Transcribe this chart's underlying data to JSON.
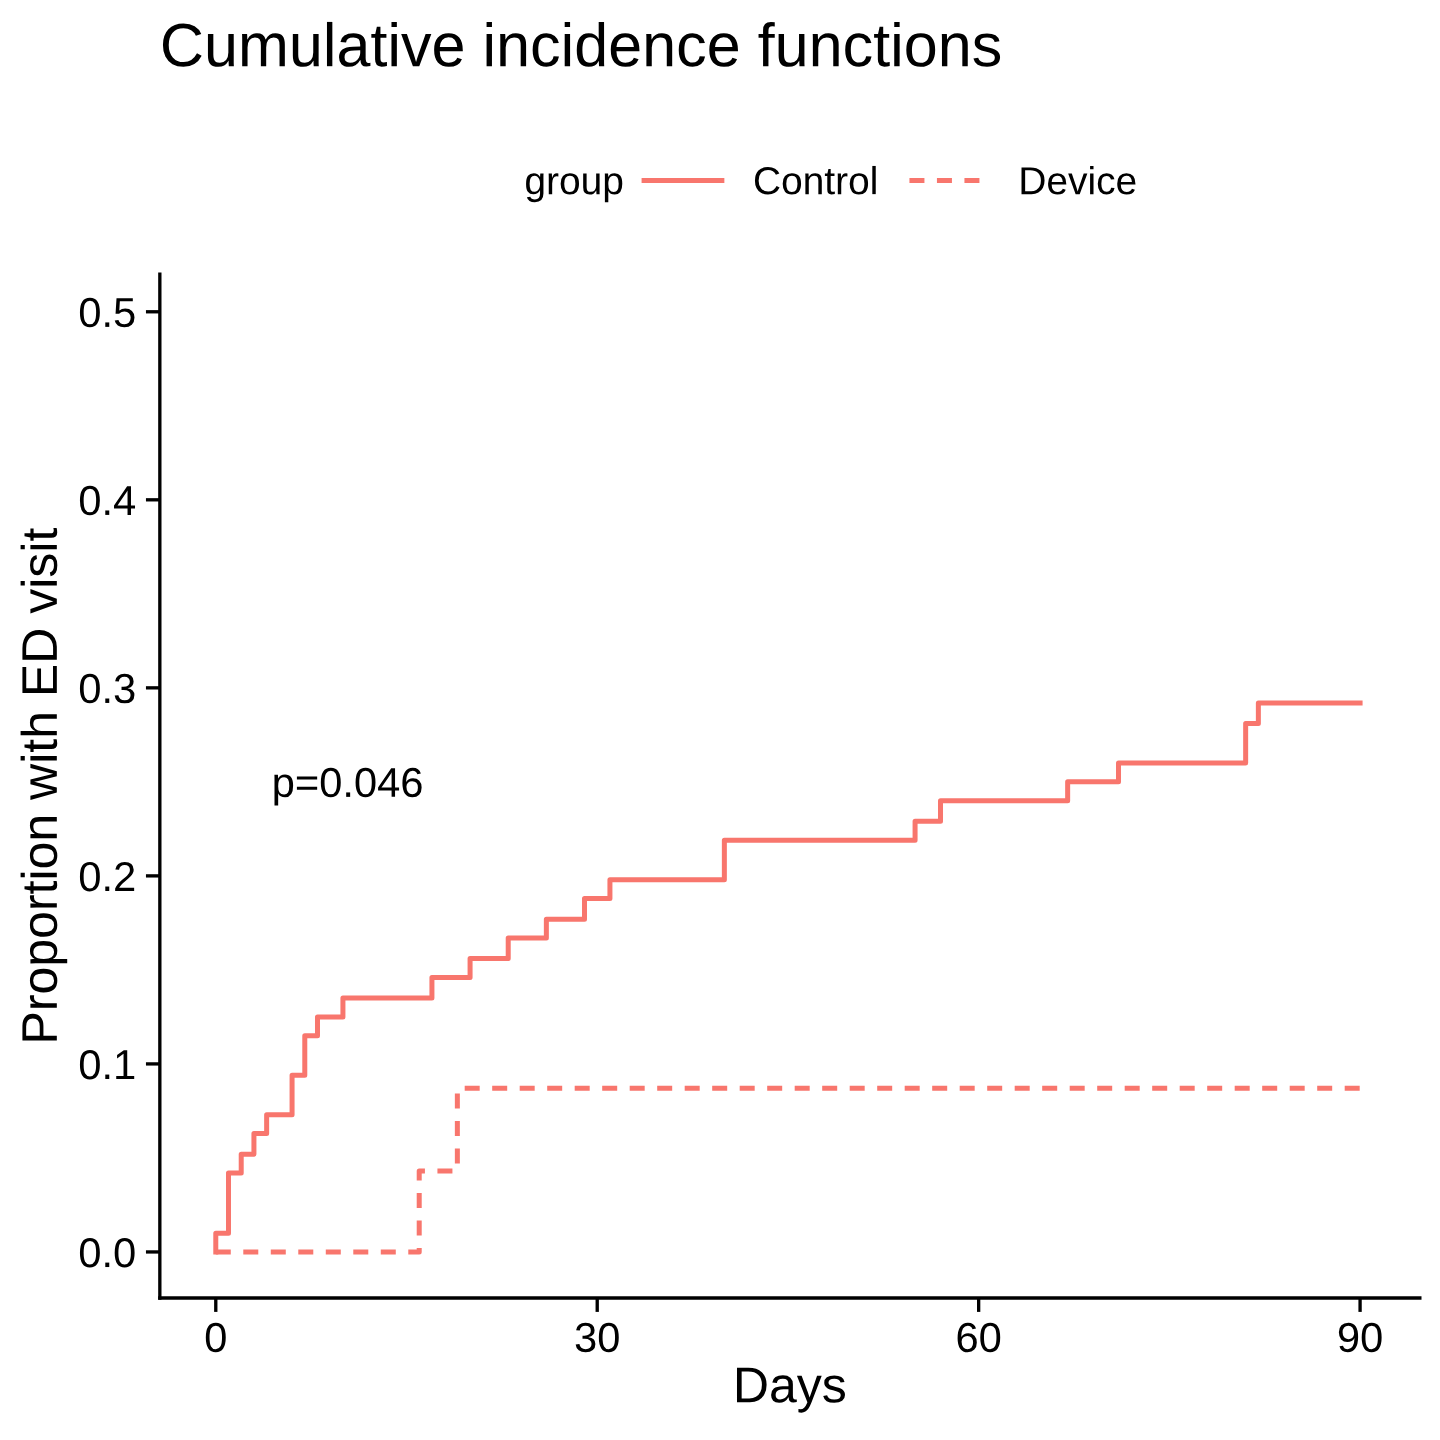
{
  "chart_data": {
    "type": "step",
    "title": "Cumulative incidence functions",
    "xlabel": "Days",
    "ylabel": "Proportion with ED visit",
    "legend_title": "group",
    "legend": "top",
    "series": [
      {
        "name": "Control",
        "color": "#f8766d",
        "line_style": "solid",
        "x": [
          0,
          0,
          1,
          2,
          3,
          4,
          6,
          7,
          8,
          10,
          17,
          20,
          23,
          26,
          29,
          31,
          40,
          55,
          57,
          67,
          71,
          81,
          82,
          90
        ],
        "values": [
          0,
          0.01,
          0.042,
          0.052,
          0.063,
          0.073,
          0.094,
          0.115,
          0.125,
          0.135,
          0.146,
          0.156,
          0.167,
          0.177,
          0.188,
          0.198,
          0.219,
          0.229,
          0.24,
          0.25,
          0.26,
          0.281,
          0.292,
          0.292
        ]
      },
      {
        "name": "Device",
        "color": "#f8766d",
        "line_style": "dashed",
        "x": [
          0,
          16,
          19,
          90
        ],
        "values": [
          0,
          0.043,
          0.087,
          0.087
        ]
      }
    ],
    "annotations": [
      "p=0.046"
    ],
    "xlim": [
      -4.4,
      94.7
    ],
    "xticks": [
      0,
      30,
      60,
      90
    ],
    "ylim": [
      -0.0245,
      0.52
    ],
    "yticks": [
      {
        "value": 0,
        "label": "0.0"
      },
      {
        "value": 0.1,
        "label": "0.1"
      },
      {
        "value": 0.2,
        "label": "0.2"
      },
      {
        "value": 0.3,
        "label": "0.3"
      },
      {
        "value": 0.4,
        "label": "0.4"
      },
      {
        "value": 0.5,
        "label": "0.5"
      }
    ],
    "grid": false
  }
}
